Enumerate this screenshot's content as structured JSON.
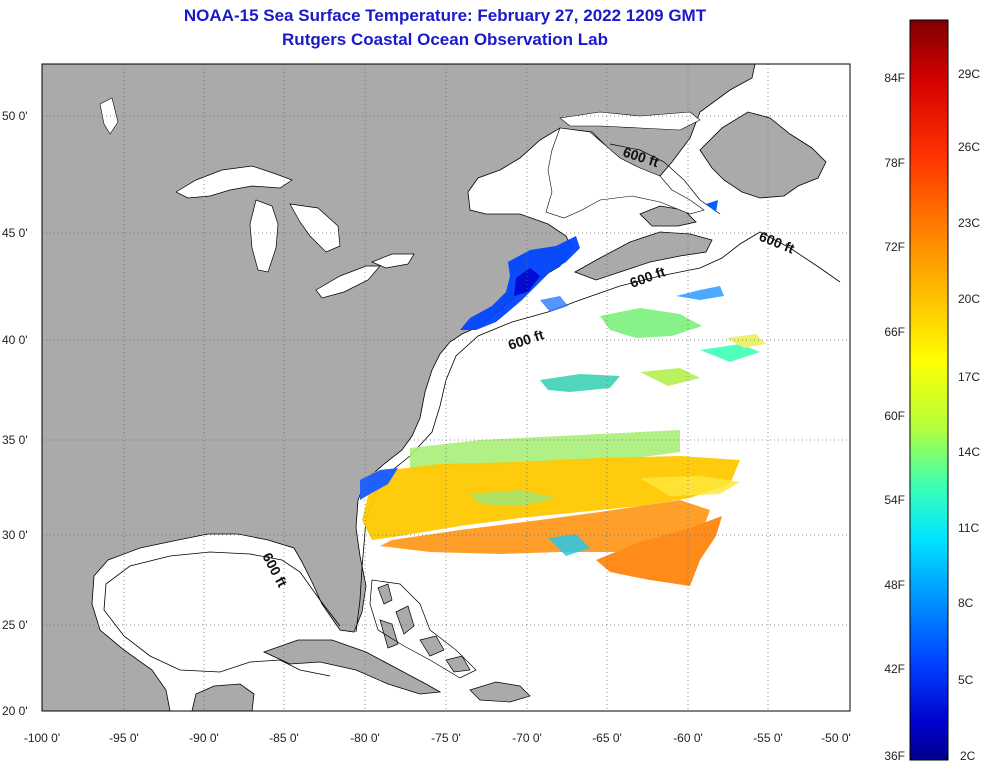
{
  "title": {
    "line1": "NOAA-15 Sea Surface Temperature:  February 27, 2022 1209 GMT",
    "line2": "Rutgers Coastal Ocean Observation Lab"
  },
  "map": {
    "lat_labels": [
      "50 0'",
      "45 0'",
      "40 0'",
      "35 0'",
      "30 0'",
      "25 0'",
      "20 0'"
    ],
    "lon_labels": [
      "-100 0'",
      "-95 0'",
      "-90 0'",
      "-85 0'",
      "-80 0'",
      "-75 0'",
      "-70 0'",
      "-65 0'",
      "-60 0'",
      "-55 0'",
      "-50 0'"
    ],
    "isobath_labels": [
      "600 ft",
      "600 ft",
      "600 ft",
      "600 ft",
      "600 ft"
    ],
    "colors": {
      "land": "#aaaaaa",
      "ocean": "#ffffff",
      "coastline": "#000000",
      "grid": "#666666"
    }
  },
  "colorbar": {
    "fahrenheit_labels": [
      "84F",
      "78F",
      "72F",
      "66F",
      "60F",
      "54F",
      "48F",
      "42F",
      "36F"
    ],
    "celsius_labels": [
      "29C",
      "26C",
      "23C",
      "20C",
      "17C",
      "14C",
      "11C",
      "8C",
      "5C",
      "2C"
    ],
    "gradient_stops": [
      "#7f0000",
      "#d40000",
      "#ff3000",
      "#ff8c00",
      "#ffd200",
      "#ffff00",
      "#b4ff3c",
      "#3cffb4",
      "#00e6ff",
      "#0096ff",
      "#0040ff",
      "#0000cc",
      "#00008c"
    ]
  }
}
